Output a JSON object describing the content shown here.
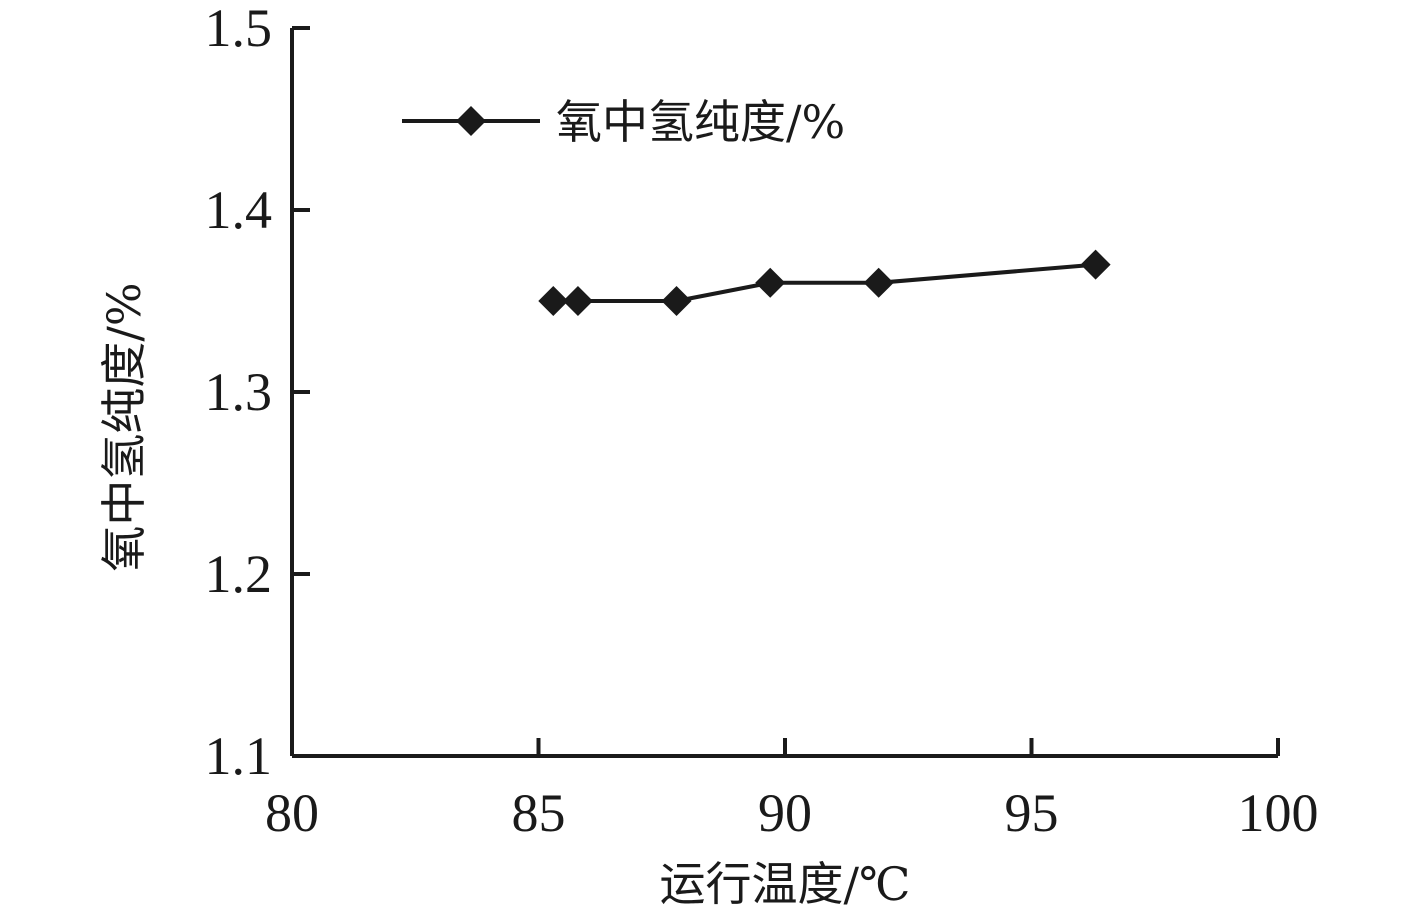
{
  "chart_data": {
    "type": "line",
    "title": "",
    "xlabel": "运行温度/℃",
    "ylabel": "氧中氢纯度/%",
    "xlim": [
      80,
      100
    ],
    "ylim": [
      1.1,
      1.5
    ],
    "x_ticks": [
      80,
      85,
      90,
      95,
      100
    ],
    "y_ticks": [
      1.1,
      1.2,
      1.3,
      1.4,
      1.5
    ],
    "x_tick_labels": [
      "80",
      "85",
      "90",
      "95",
      "100"
    ],
    "y_tick_labels": [
      "1.1",
      "1.2",
      "1.3",
      "1.4",
      "1.5"
    ],
    "grid": false,
    "legend": {
      "position": "top-left",
      "entries": [
        "氧中氢纯度/%"
      ]
    },
    "series": [
      {
        "name": "氧中氢纯度/%",
        "marker": "diamond",
        "color": "#1a1a1a",
        "x": [
          85.3,
          85.8,
          87.8,
          89.7,
          91.9,
          96.3
        ],
        "y": [
          1.35,
          1.35,
          1.35,
          1.36,
          1.36,
          1.37
        ]
      }
    ]
  }
}
